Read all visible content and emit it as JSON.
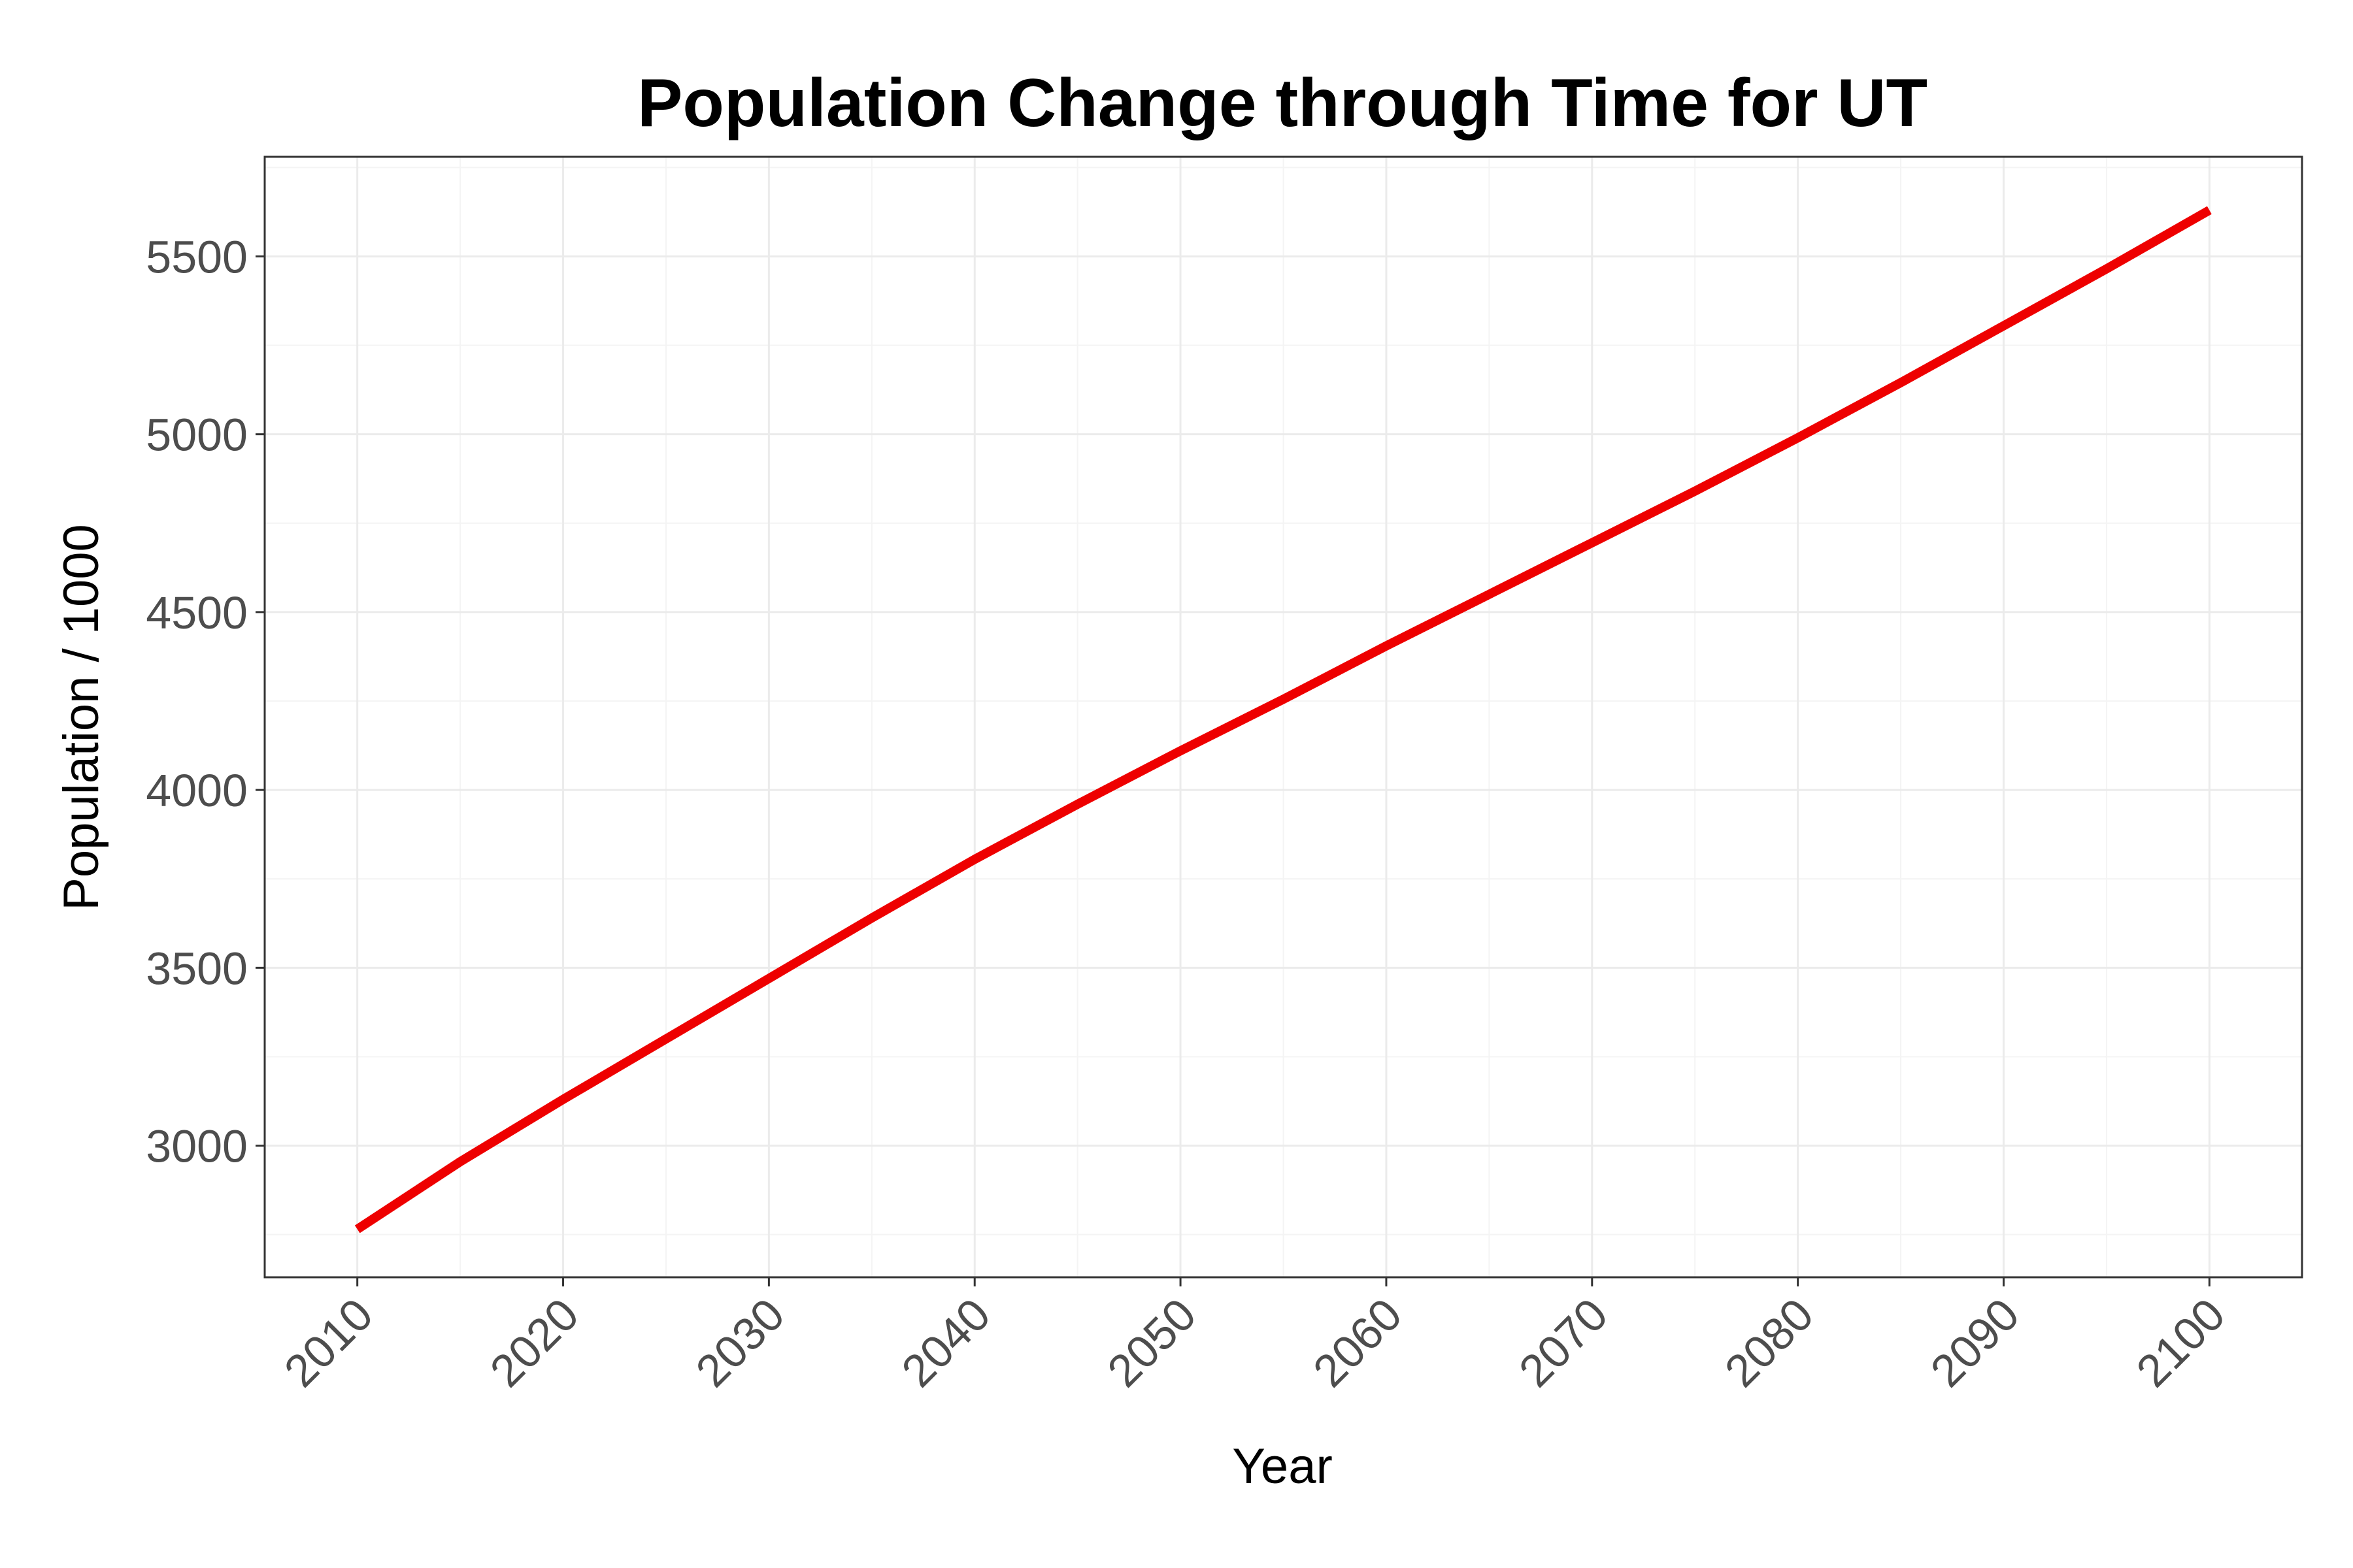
{
  "chart_data": {
    "type": "line",
    "title": "Population Change through Time for UT",
    "xlabel": "Year",
    "ylabel": "Population / 1000",
    "xlim": [
      2005.5,
      2104.5
    ],
    "ylim": [
      2630,
      5780
    ],
    "x_ticks": [
      2010,
      2020,
      2030,
      2040,
      2050,
      2060,
      2070,
      2080,
      2090,
      2100
    ],
    "y_ticks": [
      3000,
      3500,
      4000,
      4500,
      5000,
      5500
    ],
    "grid": true,
    "legend": "none",
    "series": [
      {
        "color": "#ee0000",
        "x": [
          2010,
          2015,
          2020,
          2025,
          2030,
          2035,
          2040,
          2045,
          2050,
          2055,
          2060,
          2065,
          2070,
          2075,
          2080,
          2085,
          2090,
          2095,
          2100
        ],
        "values": [
          2765,
          2955,
          3130,
          3300,
          3470,
          3640,
          3805,
          3960,
          4110,
          4255,
          4405,
          4550,
          4695,
          4840,
          4990,
          5145,
          5305,
          5465,
          5630
        ]
      }
    ]
  }
}
